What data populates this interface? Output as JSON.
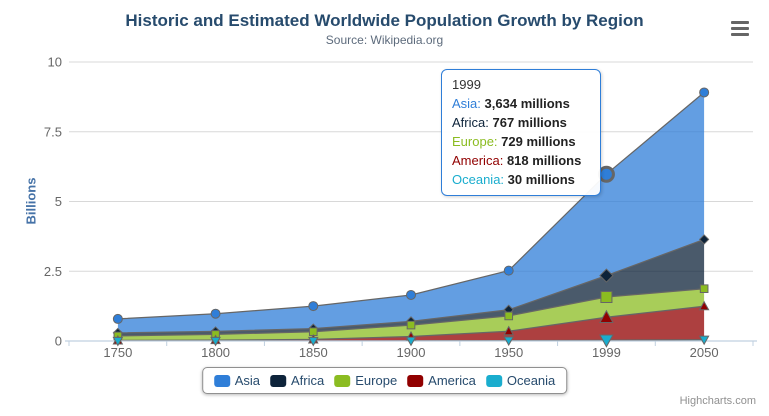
{
  "header": {
    "title": "Historic and Estimated Worldwide Population Growth by Region",
    "subtitle": "Source: Wikipedia.org"
  },
  "chart_data": {
    "type": "area",
    "stacking": "normal",
    "title": "Historic and Estimated Worldwide Population Growth by Region",
    "subtitle": "Source: Wikipedia.org",
    "xlabel": "",
    "ylabel": "Billions",
    "categories": [
      "1750",
      "1800",
      "1850",
      "1900",
      "1950",
      "1999",
      "2050"
    ],
    "values_unit": "millions",
    "series": [
      {
        "name": "Asia",
        "color": "#2f7ed8",
        "marker": "circle",
        "values": [
          502,
          635,
          809,
          947,
          1402,
          3634,
          5268
        ]
      },
      {
        "name": "Africa",
        "color": "#0d233a",
        "marker": "diamond",
        "values": [
          106,
          107,
          111,
          133,
          221,
          767,
          1766
        ]
      },
      {
        "name": "Europe",
        "color": "#8bbc21",
        "marker": "square",
        "values": [
          163,
          203,
          276,
          408,
          547,
          729,
          628
        ]
      },
      {
        "name": "America",
        "color": "#910000",
        "marker": "triangle",
        "values": [
          18,
          31,
          54,
          156,
          339,
          818,
          1201
        ]
      },
      {
        "name": "Oceania",
        "color": "#1aadce",
        "marker": "triangle-down",
        "values": [
          2,
          2,
          2,
          6,
          13,
          30,
          46
        ]
      }
    ],
    "yticks": [
      0,
      2.5,
      5,
      7.5,
      10
    ],
    "ylim": [
      0,
      10
    ],
    "grid": true,
    "legend_position": "bottom",
    "hovered_category": "1999"
  },
  "tooltip": {
    "category": "1999",
    "rows": [
      {
        "series": "Asia",
        "value": "3,634 millions"
      },
      {
        "series": "Africa",
        "value": "767 millions"
      },
      {
        "series": "Europe",
        "value": "729 millions"
      },
      {
        "series": "America",
        "value": "818 millions"
      },
      {
        "series": "Oceania",
        "value": "30 millions"
      }
    ]
  },
  "legend": {
    "items": [
      "Asia",
      "Africa",
      "Europe",
      "America",
      "Oceania"
    ]
  },
  "export_menu": {
    "icon": "hamburger-menu"
  },
  "credits": {
    "label": "Highcharts.com"
  },
  "colors": {
    "title": "#274b6d",
    "subtitle": "#5d6b7c",
    "y_axis_title": "#4572a7",
    "axis_labels": "#666666",
    "gridline": "#d8d8d8",
    "axis_line": "#c0d0e0",
    "series_outline": "#666666",
    "tooltip_border": "#2f7ed8",
    "legend_border": "#909090",
    "legend_text": "#274b6d",
    "credits_text": "#909090",
    "menu_icon": "#666666",
    "background": "#ffffff"
  }
}
